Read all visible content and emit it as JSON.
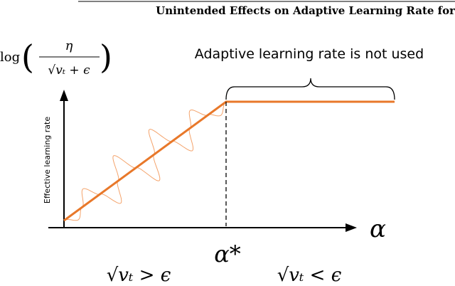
{
  "header": {
    "title": "Unintended Effects on Adaptive Learning Rate for"
  },
  "diagram": {
    "y_formula": {
      "function": "log",
      "numerator": "η",
      "denominator": "√vₜ + ϵ"
    },
    "y_axis_label": "Effective learning rate",
    "annotation": "Adaptive learning rate is not used",
    "x_axis_label": "α",
    "threshold_label": "α*",
    "left_condition": "√vₜ > ϵ",
    "right_condition": "√vₜ < ϵ"
  }
}
